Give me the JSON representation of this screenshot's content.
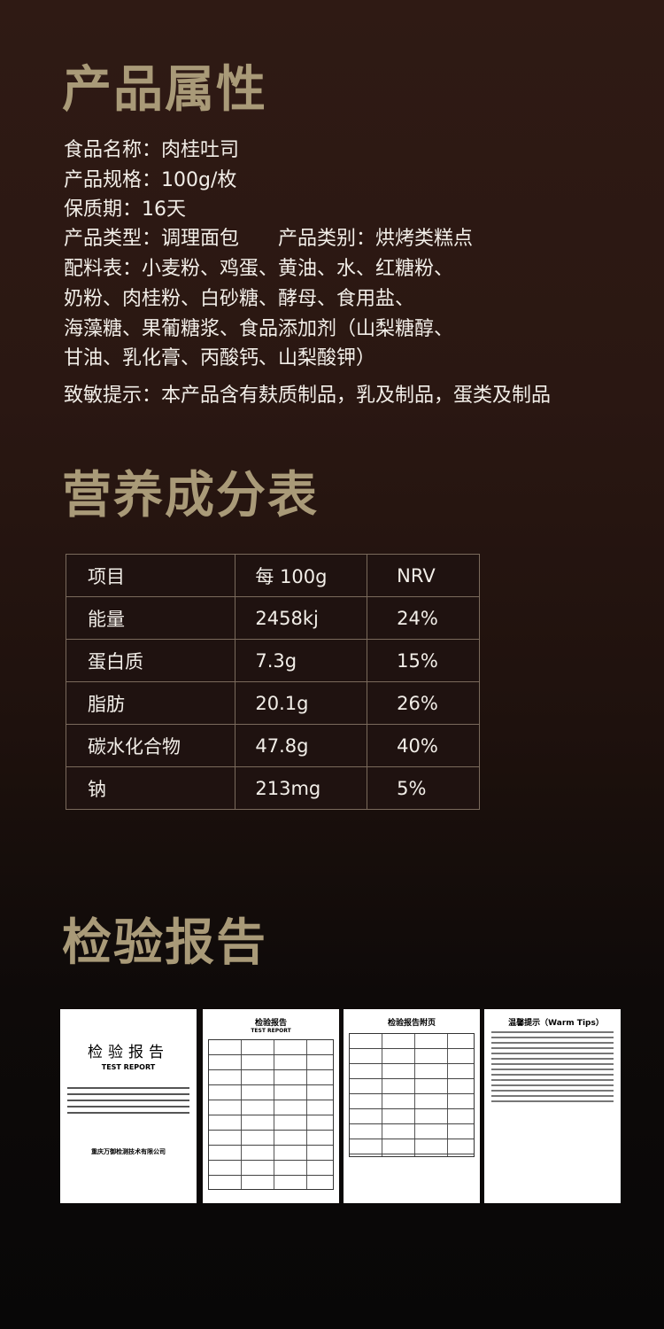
{
  "sections": {
    "attributes": "产品属性",
    "nutrition": "营养成分表",
    "report": "检验报告"
  },
  "attributes": {
    "lines": [
      "食品名称：肉桂吐司",
      "产品规格：100g/枚",
      "保质期：16天",
      "产品类型：调理面包　　产品类别：烘烤类糕点",
      "配料表：小麦粉、鸡蛋、黄油、水、红糖粉、",
      "奶粉、肉桂粉、白砂糖、酵母、食用盐、",
      "海藻糖、果葡糖浆、食品添加剂（山梨糖醇、",
      "甘油、乳化膏、丙酸钙、山梨酸钾）",
      "致敏提示：本产品含有麸质制品，乳及制品，蛋类及制品"
    ]
  },
  "nutrition_table": {
    "headers": [
      "项目",
      "每 100g",
      "NRV"
    ],
    "rows": [
      [
        "能量",
        "2458kj",
        "24%"
      ],
      [
        "蛋白质",
        "7.3g",
        "15%"
      ],
      [
        "脂肪",
        "20.1g",
        "26%"
      ],
      [
        "碳水化合物",
        "47.8g",
        "40%"
      ],
      [
        "钠",
        "213mg",
        "5%"
      ]
    ]
  },
  "reports": {
    "cover_title": "检验报告",
    "cover_sub": "TEST REPORT",
    "page2_title": "检验报告",
    "page2_sub": "TEST REPORT",
    "page3_title": "检验报告附页",
    "page4_title": "温馨提示（Warm Tips）",
    "company": "重庆万御检测技术有限公司"
  },
  "colors": {
    "heading": "#a99a78",
    "text": "#f2eee8",
    "table_border": "#7a6a5c"
  }
}
